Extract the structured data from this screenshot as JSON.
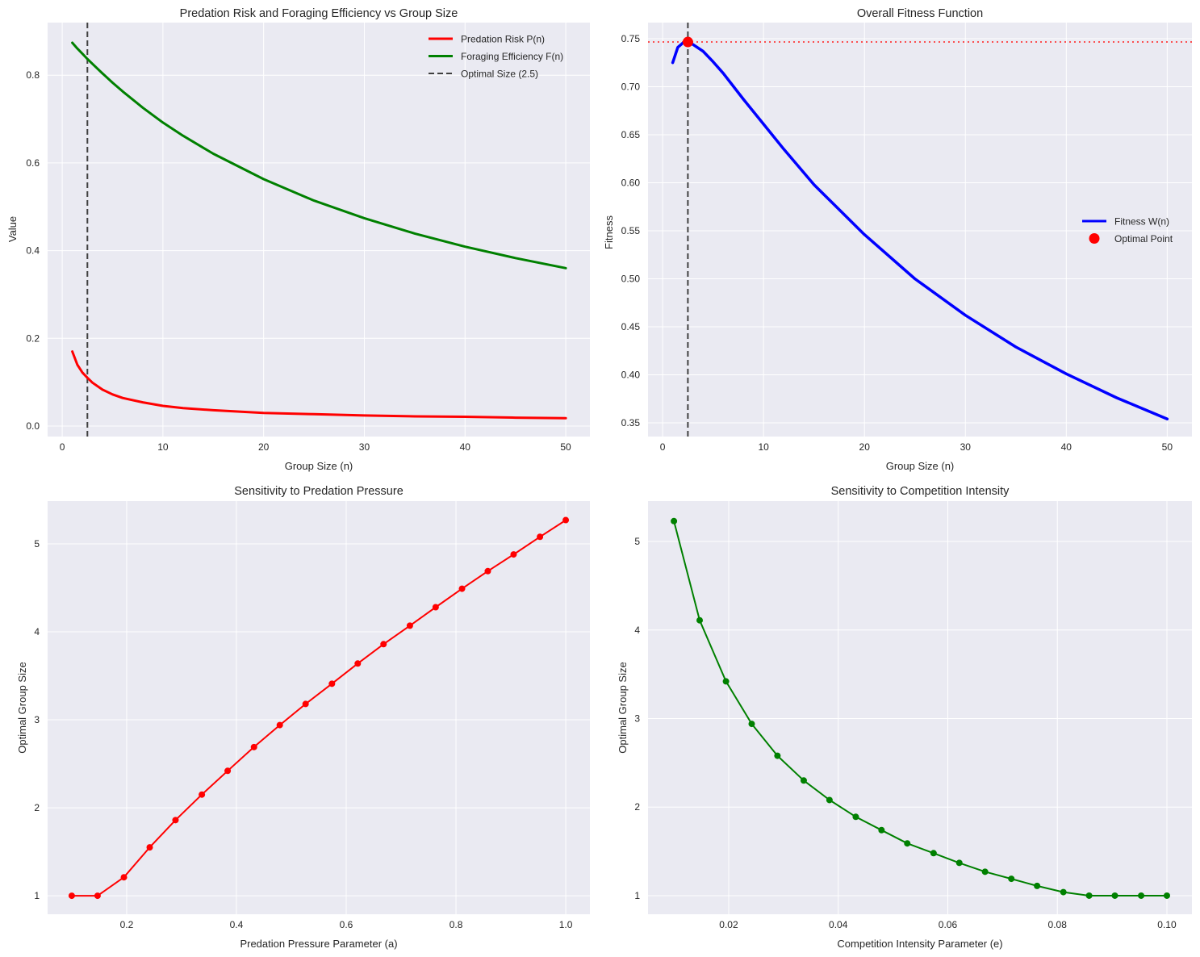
{
  "chart_data": [
    {
      "type": "line",
      "title": "Predation Risk and Foraging Efficiency vs Group Size",
      "xlabel": "Group Size (n)",
      "ylabel": "Value",
      "xlim": [
        -1.45,
        52.4
      ],
      "ylim": [
        -0.024,
        0.92
      ],
      "xticks": [
        0,
        10,
        20,
        30,
        40,
        50
      ],
      "yticks": [
        0.0,
        0.2,
        0.4,
        0.6,
        0.8
      ],
      "ytick_decimals": 1,
      "xtick_decimals": 0,
      "grid": true,
      "legend_position": "top-right",
      "x": [
        1,
        1.5,
        2,
        2.5,
        3,
        4,
        5,
        6,
        8,
        10,
        12,
        15,
        20,
        25,
        30,
        35,
        40,
        45,
        50
      ],
      "series": [
        {
          "name": "Predation Risk P(n)",
          "color": "#ff0000",
          "style": "solid",
          "values": [
            0.17,
            0.14,
            0.122,
            0.11,
            0.099,
            0.083,
            0.072,
            0.064,
            0.054,
            0.046,
            0.041,
            0.036,
            0.03,
            0.027,
            0.024,
            0.022,
            0.021,
            0.019,
            0.018
          ]
        },
        {
          "name": "Foraging Efficiency F(n)",
          "color": "#008000",
          "style": "solid",
          "values": [
            0.874,
            0.861,
            0.849,
            0.837,
            0.826,
            0.804,
            0.783,
            0.763,
            0.726,
            0.692,
            0.662,
            0.621,
            0.563,
            0.514,
            0.474,
            0.439,
            0.409,
            0.383,
            0.36
          ]
        }
      ],
      "vlines": [
        {
          "name": "Optimal Size (2.5)",
          "x": 2.5,
          "color": "#404040",
          "style": "dashed"
        }
      ]
    },
    {
      "type": "line",
      "title": "Overall Fitness Function",
      "xlabel": "Group Size (n)",
      "ylabel": "Fitness",
      "xlim": [
        -1.45,
        52.45
      ],
      "ylim": [
        0.3357,
        0.7668
      ],
      "xticks": [
        0,
        10,
        20,
        30,
        40,
        50
      ],
      "yticks": [
        0.35,
        0.4,
        0.45,
        0.5,
        0.55,
        0.6,
        0.65,
        0.7,
        0.75
      ],
      "ytick_decimals": 2,
      "xtick_decimals": 0,
      "grid": true,
      "legend_position": "center-right",
      "x": [
        1,
        1.5,
        2,
        2.5,
        3,
        4,
        5,
        6,
        8,
        10,
        12,
        15,
        20,
        25,
        30,
        35,
        40,
        45,
        50
      ],
      "series": [
        {
          "name": "Fitness W(n)",
          "color": "#0000ff",
          "style": "solid",
          "values": [
            0.725,
            0.741,
            0.7455,
            0.7466,
            0.744,
            0.737,
            0.726,
            0.714,
            0.687,
            0.661,
            0.635,
            0.598,
            0.546,
            0.5,
            0.462,
            0.429,
            0.401,
            0.376,
            0.354
          ]
        }
      ],
      "points": [
        {
          "name": "Optimal Point",
          "x": 2.5,
          "y": 0.7466,
          "color": "#ff0000"
        }
      ],
      "vlines": [
        {
          "x": 2.5,
          "color": "#404040",
          "style": "dashed"
        }
      ],
      "hlines": [
        {
          "y": 0.7466,
          "color": "#ff3333",
          "style": "dotted"
        }
      ]
    },
    {
      "type": "line",
      "title": "Sensitivity to Predation Pressure",
      "xlabel": "Predation Pressure Parameter (a)",
      "ylabel": "Optimal Group Size",
      "xlim": [
        0.056,
        1.044
      ],
      "ylim": [
        0.79,
        5.486
      ],
      "xticks": [
        0.2,
        0.4,
        0.6,
        0.8,
        1.0
      ],
      "yticks": [
        1,
        2,
        3,
        4,
        5
      ],
      "xtick_decimals": 1,
      "ytick_decimals": 0,
      "grid": true,
      "markers": true,
      "x": [
        0.1,
        0.147,
        0.195,
        0.242,
        0.289,
        0.337,
        0.384,
        0.432,
        0.479,
        0.526,
        0.574,
        0.621,
        0.668,
        0.716,
        0.763,
        0.811,
        0.858,
        0.905,
        0.953,
        1.0
      ],
      "series": [
        {
          "name": "Optimal Group Size",
          "color": "#ff0000",
          "style": "solid",
          "values": [
            1.0,
            1.0,
            1.21,
            1.55,
            1.86,
            2.15,
            2.42,
            2.69,
            2.94,
            3.18,
            3.41,
            3.64,
            3.86,
            4.07,
            4.28,
            4.49,
            4.69,
            4.88,
            5.08,
            5.27
          ]
        }
      ]
    },
    {
      "type": "line",
      "title": "Sensitivity to Competition Intensity",
      "xlabel": "Competition Intensity Parameter (e)",
      "ylabel": "Optimal Group Size",
      "xlim": [
        0.00527,
        0.10457
      ],
      "ylim": [
        0.79,
        5.456
      ],
      "xticks": [
        0.02,
        0.04,
        0.06,
        0.08,
        0.1
      ],
      "yticks": [
        1,
        2,
        3,
        4,
        5
      ],
      "xtick_decimals": 2,
      "ytick_decimals": 0,
      "grid": true,
      "markers": true,
      "x": [
        0.01,
        0.0147,
        0.0195,
        0.0242,
        0.0289,
        0.0337,
        0.0384,
        0.0432,
        0.0479,
        0.0526,
        0.0574,
        0.0621,
        0.0668,
        0.0716,
        0.0763,
        0.0811,
        0.0858,
        0.0905,
        0.0953,
        0.1
      ],
      "series": [
        {
          "name": "Optimal Group Size",
          "color": "#008000",
          "style": "solid",
          "values": [
            5.23,
            4.11,
            3.42,
            2.94,
            2.58,
            2.3,
            2.08,
            1.89,
            1.74,
            1.59,
            1.48,
            1.37,
            1.27,
            1.19,
            1.11,
            1.04,
            1.0,
            1.0,
            1.0,
            1.0
          ]
        }
      ]
    }
  ]
}
